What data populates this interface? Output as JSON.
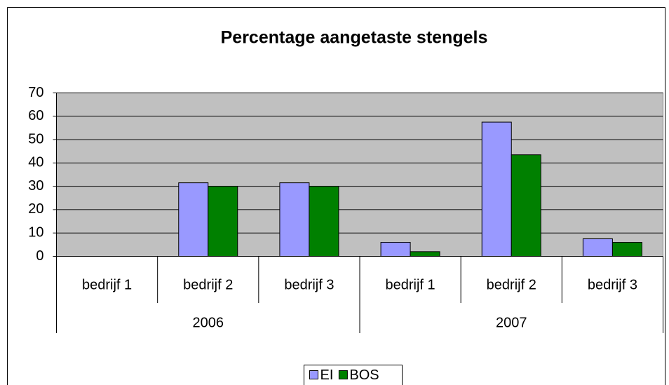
{
  "chart_data": {
    "type": "bar",
    "title": "Percentage aangetaste stengels",
    "categories": [
      "bedrijf 1",
      "bedrijf 2",
      "bedrijf 3",
      "bedrijf 1",
      "bedrijf 2",
      "bedrijf 3"
    ],
    "groups": [
      "2006",
      "2007"
    ],
    "series": [
      {
        "name": "EI",
        "color": "#9999ff",
        "values": [
          0,
          31.5,
          31.5,
          6,
          57.5,
          7.5
        ]
      },
      {
        "name": "BOS",
        "color": "#008000",
        "values": [
          0,
          30,
          30,
          2,
          43.5,
          6
        ]
      }
    ],
    "ylim": [
      0,
      70
    ],
    "yticks": [
      0,
      10,
      20,
      30,
      40,
      50,
      60,
      70
    ],
    "grid": true,
    "plot_background": "#c0c0c0",
    "legend": "bottom"
  }
}
